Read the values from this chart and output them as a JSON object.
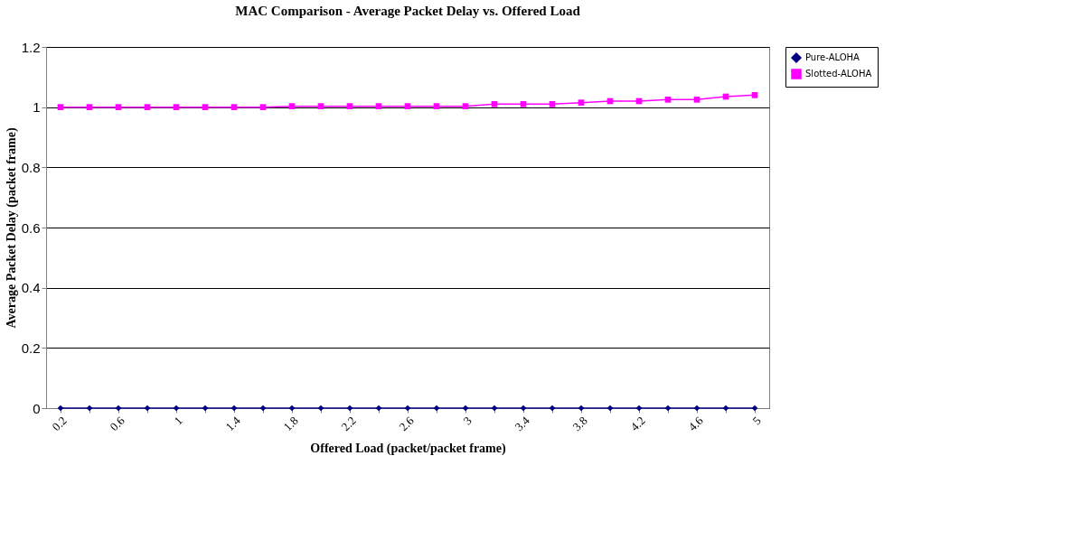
{
  "chart_data": {
    "type": "line",
    "title": "MAC Comparison - Average Packet Delay vs. Offered Load",
    "xlabel": "Offered Load (packet/packet frame)",
    "ylabel": "Average Packet Delay (packet frame)",
    "categories": [
      "0.2",
      null,
      "0.6",
      null,
      "1",
      null,
      "1.4",
      null,
      "1.8",
      null,
      "2.2",
      null,
      "2.6",
      null,
      "3",
      null,
      "3.4",
      null,
      "3.8",
      null,
      "4.2",
      null,
      "4.6",
      null,
      "5"
    ],
    "series": [
      {
        "name": "Pure-ALOHA",
        "color": "#000080",
        "marker": "diamond",
        "values": [
          0,
          0,
          0,
          0,
          0,
          0,
          0,
          0,
          0,
          0,
          0,
          0,
          0,
          0,
          0,
          0,
          0,
          0,
          0,
          0,
          0,
          0,
          0,
          0,
          0
        ]
      },
      {
        "name": "Slotted-ALOHA",
        "color": "#ff00ff",
        "marker": "square",
        "values": [
          1.0,
          1.0,
          1.0,
          1.0,
          1.0,
          1.0,
          1.0,
          1.0,
          1.003,
          1.003,
          1.003,
          1.003,
          1.003,
          1.003,
          1.003,
          1.01,
          1.01,
          1.01,
          1.015,
          1.02,
          1.02,
          1.025,
          1.025,
          1.035,
          1.04
        ]
      }
    ],
    "ylim": [
      0,
      1.2
    ],
    "yticks": [
      0,
      0.2,
      0.4,
      0.6,
      0.8,
      1,
      1.2
    ],
    "grid": "y",
    "legend": "right",
    "line_style": "solid"
  }
}
